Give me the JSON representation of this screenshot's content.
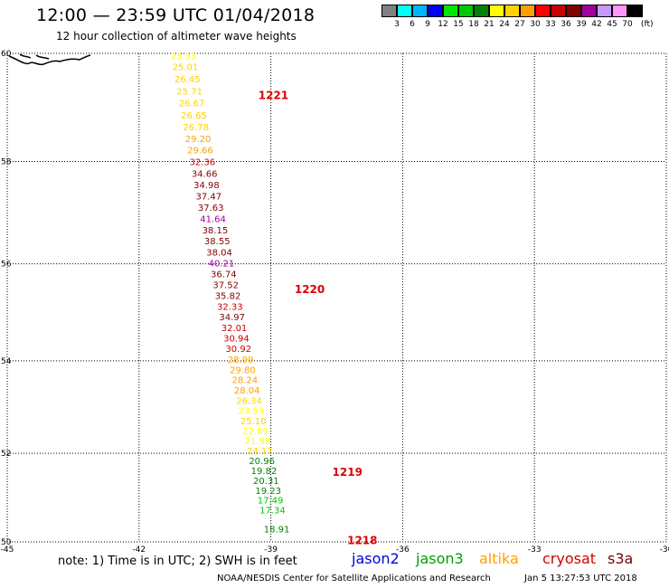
{
  "title": "12:00 — 23:59 UTC 01/04/2018",
  "subtitle": "12 hour collection of altimeter wave heights",
  "legend": {
    "unit": "(ft)",
    "colors": [
      "#808080",
      "#00ffff",
      "#00b4ff",
      "#0000ff",
      "#00e600",
      "#00c800",
      "#008200",
      "#ffff00",
      "#ffd200",
      "#ffa000",
      "#ff0000",
      "#c80000",
      "#820000",
      "#a000a0",
      "#c896ff",
      "#ff96ff",
      "#000000"
    ],
    "labels": [
      "3",
      "6",
      "9",
      "12",
      "15",
      "18",
      "21",
      "24",
      "27",
      "30",
      "33",
      "36",
      "39",
      "42",
      "45",
      "70"
    ]
  },
  "map": {
    "lon_range": [
      -45,
      -30
    ],
    "lat_range": [
      50,
      60
    ],
    "x_ticks": [
      "-45",
      "-42",
      "-39",
      "-36",
      "-33",
      "-30"
    ],
    "y_ticks": [
      "60",
      "58",
      "56",
      "54",
      "52",
      "50"
    ]
  },
  "track_labels": [
    {
      "text": "1221",
      "lat": 59.25
    },
    {
      "text": "1220",
      "lat": 55.5
    },
    {
      "text": "1219",
      "lat": 51.6
    },
    {
      "text": "1218",
      "lat": 50.05
    }
  ],
  "observations": [
    {
      "swh": "23.33",
      "lat": 59.96,
      "color": "#ffff00"
    },
    {
      "swh": "25.01",
      "lat": 59.76,
      "color": "#ffd200"
    },
    {
      "swh": "26.45",
      "lat": 59.54,
      "color": "#ffd200"
    },
    {
      "swh": "25.71",
      "lat": 59.32,
      "color": "#ffd200"
    },
    {
      "swh": "26.67",
      "lat": 59.1,
      "color": "#ffd200"
    },
    {
      "swh": "26.65",
      "lat": 58.88,
      "color": "#ffd200"
    },
    {
      "swh": "26.78",
      "lat": 58.66,
      "color": "#ffd200"
    },
    {
      "swh": "29.20",
      "lat": 58.44,
      "color": "#ffa000"
    },
    {
      "swh": "29.66",
      "lat": 58.22,
      "color": "#ffa000"
    },
    {
      "swh": "32.36",
      "lat": 58.0,
      "color": "#c80000"
    },
    {
      "swh": "34.66",
      "lat": 57.78,
      "color": "#820000"
    },
    {
      "swh": "34.98",
      "lat": 57.56,
      "color": "#820000"
    },
    {
      "swh": "37.47",
      "lat": 57.34,
      "color": "#820000"
    },
    {
      "swh": "37.63",
      "lat": 57.12,
      "color": "#820000"
    },
    {
      "swh": "41.64",
      "lat": 56.9,
      "color": "#a000a0"
    },
    {
      "swh": "38.15",
      "lat": 56.68,
      "color": "#820000"
    },
    {
      "swh": "38.55",
      "lat": 56.46,
      "color": "#820000"
    },
    {
      "swh": "38.04",
      "lat": 56.24,
      "color": "#820000"
    },
    {
      "swh": "40.21",
      "lat": 56.02,
      "color": "#a000a0"
    },
    {
      "swh": "36.74",
      "lat": 55.8,
      "color": "#820000"
    },
    {
      "swh": "37.52",
      "lat": 55.58,
      "color": "#820000"
    },
    {
      "swh": "35.82",
      "lat": 55.36,
      "color": "#820000"
    },
    {
      "swh": "32.33",
      "lat": 55.14,
      "color": "#c80000"
    },
    {
      "swh": "34.97",
      "lat": 54.92,
      "color": "#820000"
    },
    {
      "swh": "32.01",
      "lat": 54.7,
      "color": "#c80000"
    },
    {
      "swh": "30.94",
      "lat": 54.48,
      "color": "#c80000"
    },
    {
      "swh": "30.92",
      "lat": 54.26,
      "color": "#c80000"
    },
    {
      "swh": "28.99",
      "lat": 54.04,
      "color": "#ffa000"
    },
    {
      "swh": "29.80",
      "lat": 53.82,
      "color": "#ffa000"
    },
    {
      "swh": "28.24",
      "lat": 53.6,
      "color": "#ffa000"
    },
    {
      "swh": "28.04",
      "lat": 53.38,
      "color": "#ffa000"
    },
    {
      "swh": "26.34",
      "lat": 53.16,
      "color": "#ffd200"
    },
    {
      "swh": "23.59",
      "lat": 52.94,
      "color": "#ffff00"
    },
    {
      "swh": "25.10",
      "lat": 52.72,
      "color": "#ffd200"
    },
    {
      "swh": "22.89",
      "lat": 52.5,
      "color": "#ffff00"
    },
    {
      "swh": "21.99",
      "lat": 52.28,
      "color": "#ffff00"
    },
    {
      "swh": "24.12",
      "lat": 52.06,
      "color": "#ffd200"
    },
    {
      "swh": "20.96",
      "lat": 51.84,
      "color": "#008200"
    },
    {
      "swh": "19.82",
      "lat": 51.62,
      "color": "#008200"
    },
    {
      "swh": "20.31",
      "lat": 51.4,
      "color": "#008200"
    },
    {
      "swh": "19.23",
      "lat": 51.18,
      "color": "#008200"
    },
    {
      "swh": "17.49",
      "lat": 50.96,
      "color": "#00c800"
    },
    {
      "swh": "17.34",
      "lat": 50.74,
      "color": "#00c800"
    },
    {
      "swh": "18.91",
      "lat": 50.3,
      "color": "#008200"
    }
  ],
  "note": "note: 1) Time is in UTC; 2) SWH is in feet",
  "satellites": [
    {
      "name": "jason2",
      "color": "#0000dc"
    },
    {
      "name": "jason3",
      "color": "#00a000"
    },
    {
      "name": "altika",
      "color": "#ffa000"
    },
    {
      "name": "cryosat",
      "color": "#d20000"
    },
    {
      "name": "s3a",
      "color": "#7a0000"
    }
  ],
  "credit": "NOAA/NESDIS Center for Satellite Applications and Research",
  "timestamp": "Jan  5 13:27:53 UTC 2018"
}
